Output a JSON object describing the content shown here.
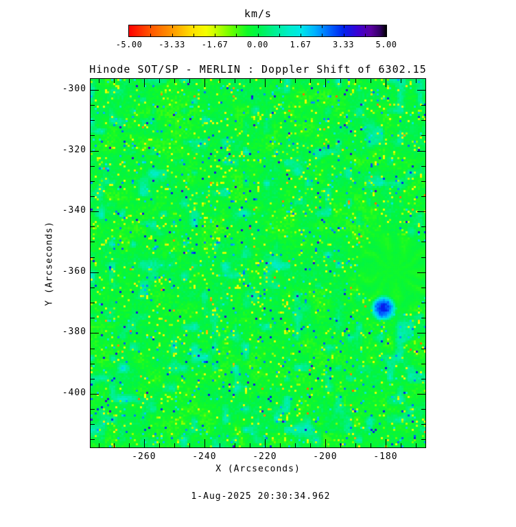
{
  "window": {
    "background": "#ffffff",
    "text_color": "#000000"
  },
  "colorbar": {
    "label": "km/s",
    "tick_labels": [
      "-5.00",
      "-3.33",
      "-1.67",
      "0.00",
      "1.67",
      "3.33",
      "5.00"
    ],
    "min": -5,
    "max": 5,
    "segments": 12,
    "stops": [
      [
        -5.0,
        "#ff0000"
      ],
      [
        -4.2,
        "#ff5200"
      ],
      [
        -3.33,
        "#ff9800"
      ],
      [
        -2.6,
        "#ffdc00"
      ],
      [
        -2.0,
        "#f4ff00"
      ],
      [
        -1.67,
        "#ccff00"
      ],
      [
        -1.0,
        "#66ff00"
      ],
      [
        -0.4,
        "#10fa28"
      ],
      [
        0.0,
        "#00f546"
      ],
      [
        0.6,
        "#00f08c"
      ],
      [
        1.2,
        "#00eec8"
      ],
      [
        1.67,
        "#00e8e8"
      ],
      [
        2.2,
        "#00b4ff"
      ],
      [
        2.8,
        "#0064ff"
      ],
      [
        3.33,
        "#0022ee"
      ],
      [
        3.9,
        "#3c00d2"
      ],
      [
        4.4,
        "#5a00a0"
      ],
      [
        4.75,
        "#320064"
      ],
      [
        5.0,
        "#000000"
      ]
    ]
  },
  "chart_data": {
    "type": "heatmap",
    "title": "Hinode SOT/SP - MERLIN : Doppler Shift of 6302.15",
    "xlabel": "X (Arcseconds)",
    "ylabel": "Y (Arcseconds)",
    "x_range": [
      -277.7,
      -166.8
    ],
    "y_range": [
      -417.6,
      -296.4
    ],
    "x_ticks": [
      -260,
      -240,
      -220,
      -200,
      -180
    ],
    "y_ticks": [
      -300,
      -320,
      -340,
      -360,
      -380,
      -400
    ],
    "minor_tick_step": 5,
    "grid": false,
    "legend_position": "none",
    "units": "km/s",
    "colorbar_label": "km/s",
    "colorbar_range": [
      -5,
      5
    ],
    "colorbar_ticks": [
      -5.0,
      -3.33,
      -1.67,
      0.0,
      1.67,
      3.33,
      5.0
    ],
    "timestamp": "1-Aug-2025 20:30:34.962",
    "value_summary": {
      "dominant_value_km_s": 0,
      "typical_spread_km_s": 0.6,
      "blueshift_speckles_km_s": -2,
      "redshift_speckles_km_s": 2.5,
      "description": "Quiet-Sun granular Doppler map: mostly near-zero (green) with salt-and-pepper ±1-3 km/s up/downflows (yellow and cyan/blue speckles)"
    },
    "features": [
      {
        "name": "smooth-radial-pore",
        "x": -177.0,
        "y": -359.5,
        "radius_arcsec": 12,
        "value_km_s": -0.3
      },
      {
        "name": "strong-redshift-patch",
        "x": -181.0,
        "y": -371.5,
        "radius_arcsec": 3.5,
        "value_km_s": 2.4
      }
    ]
  }
}
